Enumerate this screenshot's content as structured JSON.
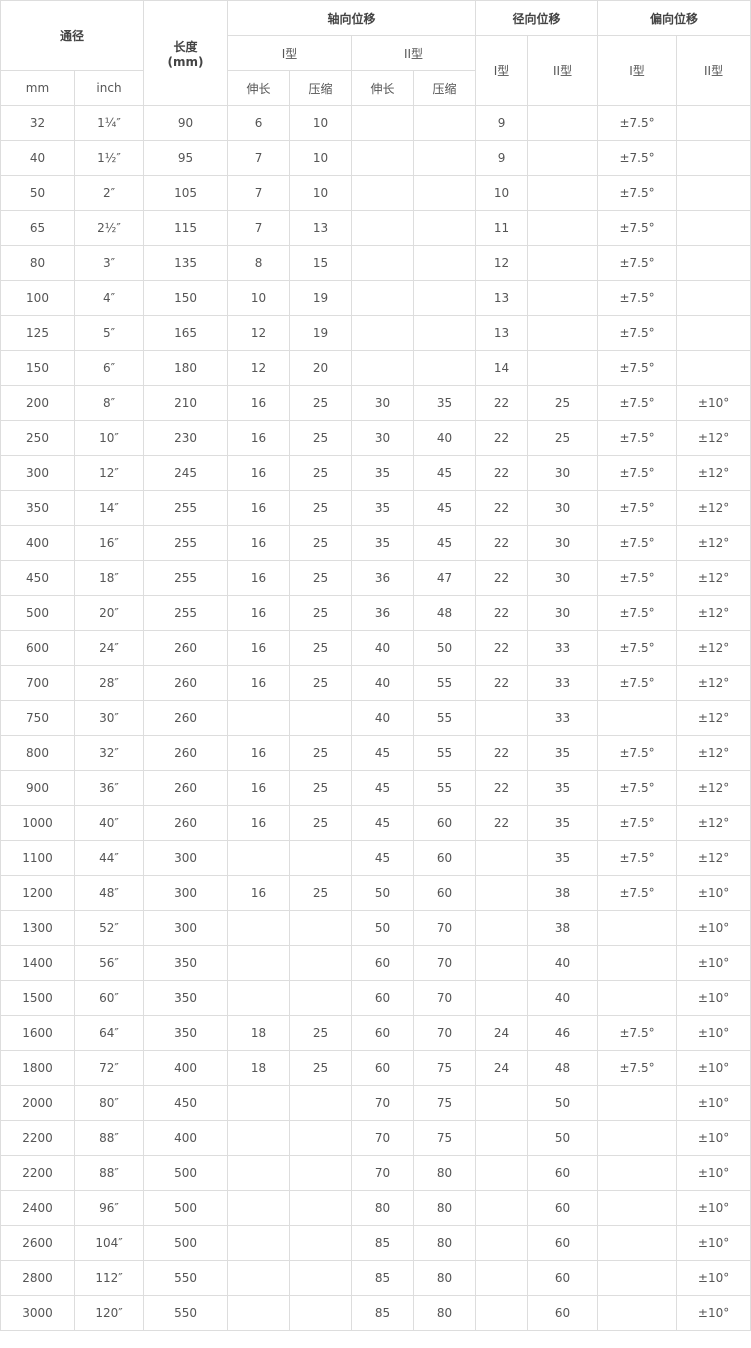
{
  "header": {
    "diameter": "通径",
    "length": "长度",
    "length_unit": "(mm)",
    "axial": "轴向位移",
    "radial": "径向位移",
    "angular": "偏向位移",
    "type1": "I型",
    "type2": "II型",
    "mm": "mm",
    "inch": "inch",
    "extend": "伸长",
    "compress": "压缩"
  },
  "rows": [
    [
      "32",
      "1¼″",
      "90",
      "6",
      "10",
      "",
      "",
      "9",
      "",
      "±7.5°",
      ""
    ],
    [
      "40",
      "1½″",
      "95",
      "7",
      "10",
      "",
      "",
      "9",
      "",
      "±7.5°",
      ""
    ],
    [
      "50",
      "2″",
      "105",
      "7",
      "10",
      "",
      "",
      "10",
      "",
      "±7.5°",
      ""
    ],
    [
      "65",
      "2½″",
      "115",
      "7",
      "13",
      "",
      "",
      "11",
      "",
      "±7.5°",
      ""
    ],
    [
      "80",
      "3″",
      "135",
      "8",
      "15",
      "",
      "",
      "12",
      "",
      "±7.5°",
      ""
    ],
    [
      "100",
      "4″",
      "150",
      "10",
      "19",
      "",
      "",
      "13",
      "",
      "±7.5°",
      ""
    ],
    [
      "125",
      "5″",
      "165",
      "12",
      "19",
      "",
      "",
      "13",
      "",
      "±7.5°",
      ""
    ],
    [
      "150",
      "6″",
      "180",
      "12",
      "20",
      "",
      "",
      "14",
      "",
      "±7.5°",
      ""
    ],
    [
      "200",
      "8″",
      "210",
      "16",
      "25",
      "30",
      "35",
      "22",
      "25",
      "±7.5°",
      "±10°"
    ],
    [
      "250",
      "10″",
      "230",
      "16",
      "25",
      "30",
      "40",
      "22",
      "25",
      "±7.5°",
      "±12°"
    ],
    [
      "300",
      "12″",
      "245",
      "16",
      "25",
      "35",
      "45",
      "22",
      "30",
      "±7.5°",
      "±12°"
    ],
    [
      "350",
      "14″",
      "255",
      "16",
      "25",
      "35",
      "45",
      "22",
      "30",
      "±7.5°",
      "±12°"
    ],
    [
      "400",
      "16″",
      "255",
      "16",
      "25",
      "35",
      "45",
      "22",
      "30",
      "±7.5°",
      "±12°"
    ],
    [
      "450",
      "18″",
      "255",
      "16",
      "25",
      "36",
      "47",
      "22",
      "30",
      "±7.5°",
      "±12°"
    ],
    [
      "500",
      "20″",
      "255",
      "16",
      "25",
      "36",
      "48",
      "22",
      "30",
      "±7.5°",
      "±12°"
    ],
    [
      "600",
      "24″",
      "260",
      "16",
      "25",
      "40",
      "50",
      "22",
      "33",
      "±7.5°",
      "±12°"
    ],
    [
      "700",
      "28″",
      "260",
      "16",
      "25",
      "40",
      "55",
      "22",
      "33",
      "±7.5°",
      "±12°"
    ],
    [
      "750",
      "30″",
      "260",
      "",
      "",
      "40",
      "55",
      "",
      "33",
      "",
      "±12°"
    ],
    [
      "800",
      "32″",
      "260",
      "16",
      "25",
      "45",
      "55",
      "22",
      "35",
      "±7.5°",
      "±12°"
    ],
    [
      "900",
      "36″",
      "260",
      "16",
      "25",
      "45",
      "55",
      "22",
      "35",
      "±7.5°",
      "±12°"
    ],
    [
      "1000",
      "40″",
      "260",
      "16",
      "25",
      "45",
      "60",
      "22",
      "35",
      "±7.5°",
      "±12°"
    ],
    [
      "1100",
      "44″",
      "300",
      "",
      "",
      "45",
      "60",
      "",
      "35",
      "±7.5°",
      "±12°"
    ],
    [
      "1200",
      "48″",
      "300",
      "16",
      "25",
      "50",
      "60",
      "",
      "38",
      "±7.5°",
      "±10°"
    ],
    [
      "1300",
      "52″",
      "300",
      "",
      "",
      "50",
      "70",
      "",
      "38",
      "",
      "±10°"
    ],
    [
      "1400",
      "56″",
      "350",
      "",
      "",
      "60",
      "70",
      "",
      "40",
      "",
      "±10°"
    ],
    [
      "1500",
      "60″",
      "350",
      "",
      "",
      "60",
      "70",
      "",
      "40",
      "",
      "±10°"
    ],
    [
      "1600",
      "64″",
      "350",
      "18",
      "25",
      "60",
      "70",
      "24",
      "46",
      "±7.5°",
      "±10°"
    ],
    [
      "1800",
      "72″",
      "400",
      "18",
      "25",
      "60",
      "75",
      "24",
      "48",
      "±7.5°",
      "±10°"
    ],
    [
      "2000",
      "80″",
      "450",
      "",
      "",
      "70",
      "75",
      "",
      "50",
      "",
      "±10°"
    ],
    [
      "2200",
      "88″",
      "400",
      "",
      "",
      "70",
      "75",
      "",
      "50",
      "",
      "±10°"
    ],
    [
      "2200",
      "88″",
      "500",
      "",
      "",
      "70",
      "80",
      "",
      "60",
      "",
      "±10°"
    ],
    [
      "2400",
      "96″",
      "500",
      "",
      "",
      "80",
      "80",
      "",
      "60",
      "",
      "±10°"
    ],
    [
      "2600",
      "104″",
      "500",
      "",
      "",
      "85",
      "80",
      "",
      "60",
      "",
      "±10°"
    ],
    [
      "2800",
      "112″",
      "550",
      "",
      "",
      "85",
      "80",
      "",
      "60",
      "",
      "±10°"
    ],
    [
      "3000",
      "120″",
      "550",
      "",
      "",
      "85",
      "80",
      "",
      "60",
      "",
      "±10°"
    ]
  ]
}
